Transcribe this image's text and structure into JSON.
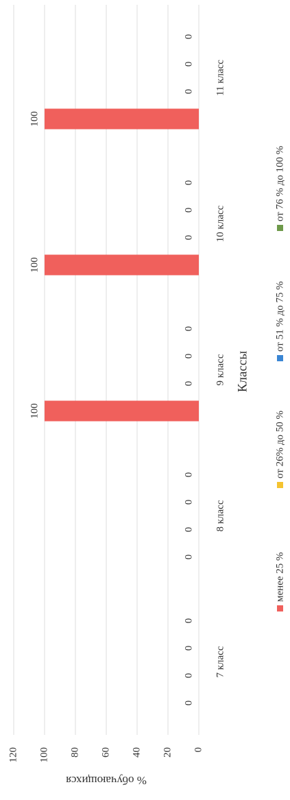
{
  "chart_data": {
    "type": "bar",
    "categories": [
      "7 класс",
      "8 класс",
      "9 класс",
      "10 класс",
      "11 класс"
    ],
    "series": [
      {
        "name": "менее 25 %",
        "color": "#f0605c",
        "values": [
          0,
          0,
          100,
          100,
          100
        ]
      },
      {
        "name": "от 26% до 50 %",
        "color": "#f5c330",
        "values": [
          0,
          0,
          0,
          0,
          0
        ]
      },
      {
        "name": "от 51 % до 75 %",
        "color": "#3a86d4",
        "values": [
          0,
          0,
          0,
          0,
          0
        ]
      },
      {
        "name": "от 76 % до 100 %",
        "color": "#6e9a4a",
        "values": [
          0,
          0,
          0,
          0,
          0
        ]
      }
    ],
    "xlabel": "Классы",
    "ylabel": "% обучающихся",
    "ylim": [
      0,
      120
    ],
    "yticks": [
      0,
      20,
      40,
      60,
      80,
      100,
      120
    ],
    "grid": true,
    "legend": "bottom"
  }
}
